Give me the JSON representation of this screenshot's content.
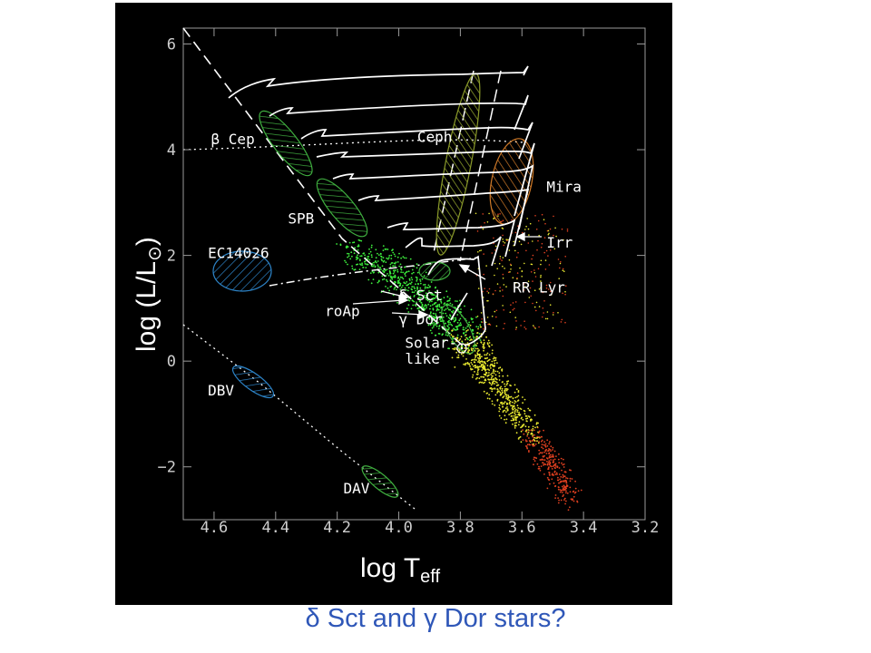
{
  "caption": "δ Sct and γ Dor stars?",
  "colors": {
    "background": "#000000",
    "caption": "#2f57b8",
    "frame": "#9a9a9a",
    "tracks": "#ffffff",
    "strip_green": "#3fae3f",
    "strip_blue": "#2d84c8",
    "strip_orange": "#d07a28",
    "stars_hot": "#3df03d",
    "stars_mid": "#e8e830",
    "stars_cool": "#e04020"
  },
  "chart_data": {
    "type": "scatter",
    "xlabel": "log T",
    "xlabel_sub": "eff",
    "ylabel": "log (L/L",
    "ylabel_symbol": "⊙",
    "ylabel_close": ")",
    "x_inverted": true,
    "xlim": [
      4.7,
      3.2
    ],
    "ylim": [
      -3,
      6.3
    ],
    "xticks": [
      "4.6",
      "4.4",
      "4.2",
      "4.0",
      "3.8",
      "3.6",
      "3.4",
      "3.2"
    ],
    "xtick_values": [
      4.6,
      4.4,
      4.2,
      4.0,
      3.8,
      3.6,
      3.4,
      3.2
    ],
    "yticks": [
      "6",
      "4",
      "2",
      "0",
      "−2"
    ],
    "ytick_values": [
      6,
      4,
      2,
      0,
      -2
    ],
    "grid": false,
    "annotations": [
      {
        "name": "beta-cep",
        "text": "β Cep",
        "x": 4.61,
        "y": 4.1
      },
      {
        "name": "ceph",
        "text": "Ceph",
        "x": 3.94,
        "y": 4.15
      },
      {
        "name": "mira",
        "text": "Mira",
        "x": 3.52,
        "y": 3.2
      },
      {
        "name": "spb",
        "text": "SPB",
        "x": 4.36,
        "y": 2.6
      },
      {
        "name": "irr",
        "text": "Irr",
        "x": 3.52,
        "y": 2.15
      },
      {
        "name": "ec14026",
        "text": "EC14026",
        "x": 4.62,
        "y": 1.95
      },
      {
        "name": "rr-lyr",
        "text": "RR Lyr",
        "x": 3.63,
        "y": 1.3
      },
      {
        "name": "delta-sct",
        "text": "δ Sct",
        "x": 4.0,
        "y": 1.15
      },
      {
        "name": "roap",
        "text": "roAp",
        "x": 4.24,
        "y": 0.85
      },
      {
        "name": "gamma-dor",
        "text": "γ Dor",
        "x": 4.0,
        "y": 0.7
      },
      {
        "name": "solar-like-1",
        "text": "Solar-",
        "x": 3.98,
        "y": 0.25
      },
      {
        "name": "solar-like-2",
        "text": "like",
        "x": 3.98,
        "y": -0.05
      },
      {
        "name": "dbv",
        "text": "DBV",
        "x": 4.62,
        "y": -0.65
      },
      {
        "name": "dav",
        "text": "DAV",
        "x": 4.18,
        "y": -2.5
      }
    ],
    "regions": [
      {
        "name": "beta-cep-region",
        "x": 4.33,
        "y": 3.8,
        "color": "#3fae3f"
      },
      {
        "name": "spb-region",
        "x": 4.17,
        "y": 2.65,
        "color": "#3fae3f"
      },
      {
        "name": "ec14026-region",
        "x": 4.47,
        "y": 1.45,
        "color": "#2d84c8"
      },
      {
        "name": "dbv-region",
        "x": 4.42,
        "y": -0.55,
        "color": "#2d84c8"
      },
      {
        "name": "dav-region",
        "x": 4.03,
        "y": -2.45,
        "color": "#3fae3f"
      },
      {
        "name": "cepheid-strip",
        "x": 3.77,
        "y": 3.3,
        "color": "#3fae3f"
      },
      {
        "name": "mira-region",
        "x": 3.58,
        "y": 3.2,
        "color": "#d07a28"
      },
      {
        "name": "delta-sct-region",
        "x": 3.87,
        "y": 1.2,
        "color": "#3fae3f"
      },
      {
        "name": "gamma-dor-region",
        "x": 3.83,
        "y": 0.65,
        "color": "#3fae3f"
      }
    ]
  }
}
